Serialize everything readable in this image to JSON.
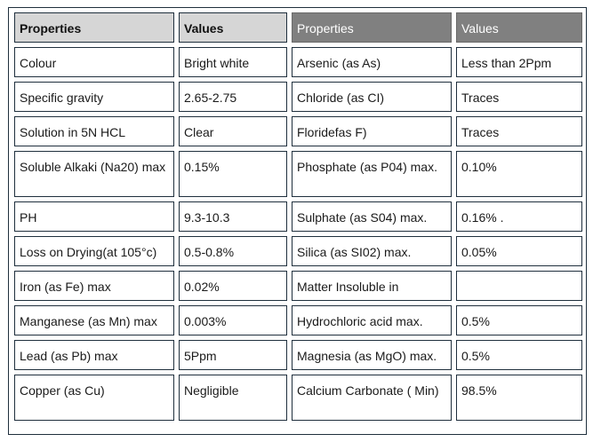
{
  "headers": [
    "Properties",
    "Values",
    "Properties",
    "Values"
  ],
  "rows": [
    [
      "Colour",
      "Bright white",
      "Arsenic (as As)",
      "Less than 2Ppm"
    ],
    [
      "Specific gravity",
      "2.65-2.75",
      "Chloride (as CI)",
      "Traces"
    ],
    [
      "Solution in 5N HCL",
      "Clear",
      "Floridefas F)",
      "Traces"
    ],
    [
      "Soluble Alkaki (Na20) max",
      "0.15%",
      "Phosphate (as P04) max.",
      "0.10%"
    ],
    [
      "PH",
      "9.3-10.3",
      "Sulphate (as S04) max.",
      "0.16%   ."
    ],
    [
      "Loss on Drying(at 105°c)",
      "0.5-0.8%",
      "Silica (as SI02) max.",
      "0.05%"
    ],
    [
      "Iron (as Fe) max",
      "0.02%",
      "Matter Insoluble in",
      ""
    ],
    [
      "Manganese (as Mn) max",
      "0.003%",
      "Hydrochloric acid max.",
      "0.5%"
    ],
    [
      "Lead (as Pb) max",
      "5Ppm",
      "Magnesia (as MgO) max.",
      "0.5%"
    ],
    [
      "Copper (as Cu)",
      "Negligible",
      "Calcium Carbonate ( Min)",
      "98.5%"
    ]
  ],
  "colors": {
    "header_light": "#d6d6d6",
    "header_dark": "#808080",
    "border": "#1f2f3d"
  }
}
